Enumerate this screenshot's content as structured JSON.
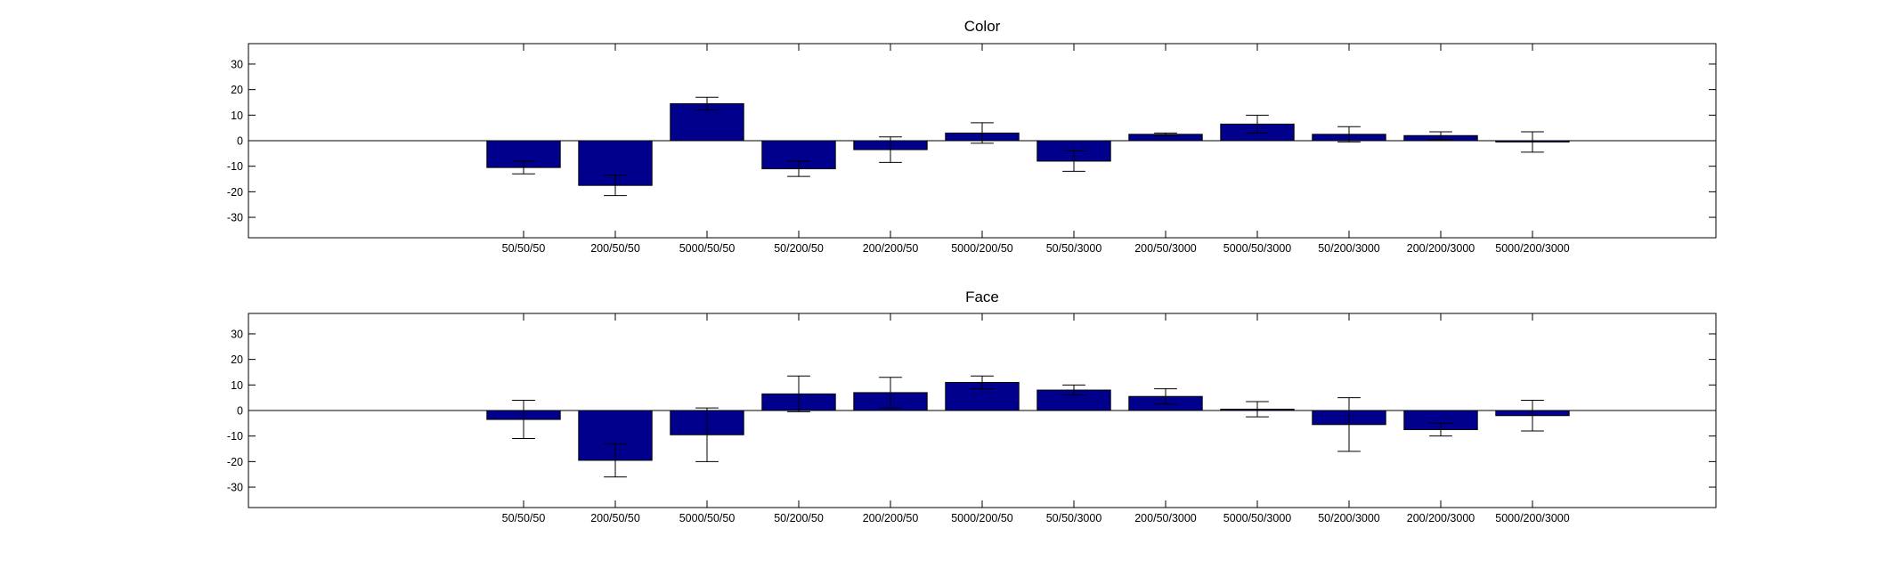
{
  "chart_data": [
    {
      "type": "bar",
      "title": "Color",
      "categories": [
        "50/50/50",
        "200/50/50",
        "5000/50/50",
        "50/200/50",
        "200/200/50",
        "5000/200/50",
        "50/50/3000",
        "200/50/3000",
        "5000/50/3000",
        "50/200/3000",
        "200/200/3000",
        "5000/200/3000"
      ],
      "values": [
        -10.5,
        -17.5,
        14.5,
        -11,
        -3.5,
        3,
        -8,
        2.5,
        6.5,
        2.5,
        2,
        -0.5
      ],
      "errors": [
        2.5,
        4,
        2.5,
        3,
        5,
        4,
        4,
        0.5,
        3.5,
        3,
        1.5,
        4
      ],
      "ylim": [
        -38,
        38
      ],
      "yticks": [
        -30,
        -20,
        -10,
        0,
        10,
        20,
        30
      ],
      "xlim": [
        -2,
        14
      ],
      "xlabel": "",
      "ylabel": "",
      "bar_color": "#00008c",
      "grid": false
    },
    {
      "type": "bar",
      "title": "Face",
      "categories": [
        "50/50/50",
        "200/50/50",
        "5000/50/50",
        "50/200/50",
        "200/200/50",
        "5000/200/50",
        "50/50/3000",
        "200/50/3000",
        "5000/50/3000",
        "50/200/3000",
        "200/200/3000",
        "5000/200/3000"
      ],
      "values": [
        -3.5,
        -19.5,
        -9.5,
        6.5,
        7,
        11,
        8,
        5.5,
        0.5,
        -5.5,
        -7.5,
        -2
      ],
      "errors": [
        7.5,
        6.5,
        10.5,
        7,
        6,
        2.5,
        2,
        3,
        3,
        10.5,
        2.5,
        6
      ],
      "ylim": [
        -38,
        38
      ],
      "yticks": [
        -30,
        -20,
        -10,
        0,
        10,
        20,
        30
      ],
      "xlim": [
        -2,
        14
      ],
      "xlabel": "",
      "ylabel": "",
      "bar_color": "#00008c",
      "grid": false
    }
  ]
}
